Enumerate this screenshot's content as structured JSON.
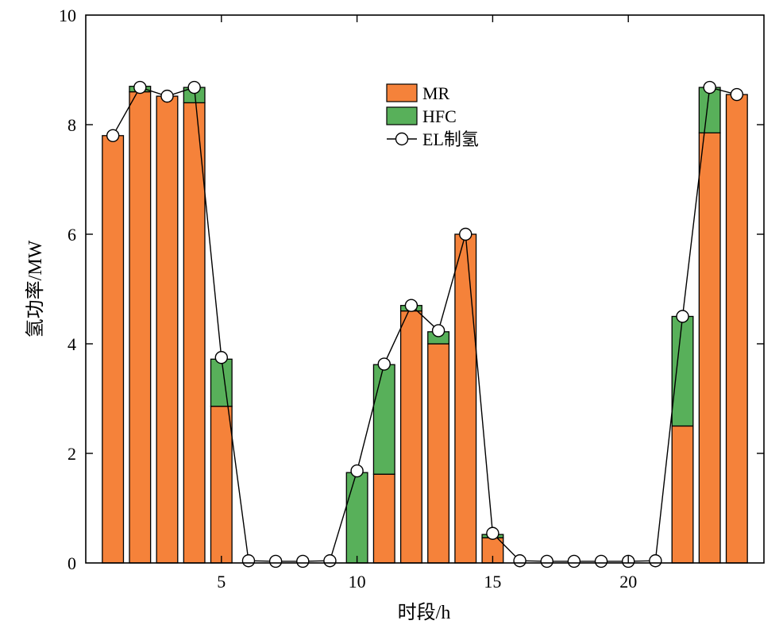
{
  "chart_data": {
    "type": "bar",
    "stacked": true,
    "xlabel": "时段/h",
    "ylabel": "氢功率/MW",
    "xlim": [
      0,
      25
    ],
    "ylim": [
      0,
      10
    ],
    "xticks": [
      5,
      10,
      15,
      20
    ],
    "yticks": [
      0,
      2,
      4,
      6,
      8,
      10
    ],
    "x": [
      1,
      2,
      3,
      4,
      5,
      6,
      7,
      8,
      9,
      10,
      11,
      12,
      13,
      14,
      15,
      16,
      17,
      18,
      19,
      20,
      21,
      22,
      23,
      24
    ],
    "series": [
      {
        "name": "MR",
        "kind": "bar",
        "color": "#f5823a",
        "values": [
          7.8,
          8.6,
          8.52,
          8.4,
          2.86,
          0,
          0,
          0,
          0,
          0,
          1.62,
          4.6,
          4.0,
          6.0,
          0.46,
          0,
          0,
          0,
          0,
          0,
          0,
          2.5,
          7.85,
          8.55
        ]
      },
      {
        "name": "HFC",
        "kind": "bar",
        "color": "#58b05a",
        "values": [
          0,
          0.1,
          0,
          0.28,
          0.86,
          0,
          0,
          0,
          0,
          1.65,
          2.0,
          0.1,
          0.22,
          0,
          0.06,
          0,
          0,
          0,
          0,
          0,
          0,
          2.0,
          0.83,
          0
        ]
      },
      {
        "name": "EL制氢",
        "kind": "line",
        "color": "#000000",
        "values": [
          7.8,
          8.68,
          8.52,
          8.68,
          3.75,
          0.04,
          0.03,
          0.03,
          0.04,
          1.68,
          3.63,
          4.7,
          4.24,
          6.0,
          0.54,
          0.04,
          0.03,
          0.03,
          0.03,
          0.03,
          0.04,
          4.5,
          8.68,
          8.55
        ]
      }
    ],
    "legend": {
      "placement": "top-center",
      "items": [
        "MR",
        "HFC",
        "EL制氢"
      ]
    },
    "grid": false
  }
}
